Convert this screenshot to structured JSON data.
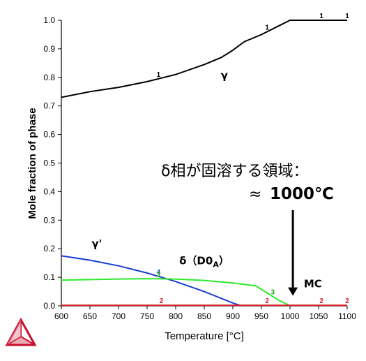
{
  "chart_data": {
    "type": "line",
    "xlabel": "Temperature [°C]",
    "ylabel": "Mole fraction of phase",
    "xlim": [
      600,
      1100
    ],
    "ylim": [
      0,
      1.0
    ],
    "x_ticks": [
      "600",
      "650",
      "700",
      "750",
      "800",
      "850",
      "900",
      "950",
      "1000",
      "1050",
      "1100"
    ],
    "y_ticks": [
      "0.0",
      "0.1",
      "0.2",
      "0.3",
      "0.4",
      "0.5",
      "0.6",
      "0.7",
      "0.8",
      "0.9",
      "1.0"
    ],
    "grid": false,
    "series": [
      {
        "name": "γ",
        "color": "#000000",
        "x": [
          600,
          650,
          700,
          750,
          800,
          850,
          880,
          900,
          920,
          950,
          980,
          1000,
          1050,
          1100
        ],
        "y": [
          0.73,
          0.75,
          0.765,
          0.785,
          0.81,
          0.845,
          0.87,
          0.895,
          0.925,
          0.95,
          0.98,
          1.0,
          1.0,
          1.0
        ],
        "markers": [
          {
            "label": "1",
            "x": 770
          },
          {
            "label": "1",
            "x": 960
          },
          {
            "label": "1",
            "x": 1055
          },
          {
            "label": "1",
            "x": 1100
          }
        ]
      },
      {
        "name": "γ'",
        "color": "#1a3fd1",
        "x": [
          600,
          650,
          700,
          750,
          800,
          850,
          900,
          915
        ],
        "y": [
          0.175,
          0.16,
          0.14,
          0.115,
          0.085,
          0.05,
          0.01,
          0.0
        ],
        "markers": [
          {
            "label": "4",
            "x": 770
          }
        ]
      },
      {
        "name": "δ（D0A）",
        "color": "#2ee82e",
        "x": [
          600,
          650,
          700,
          750,
          800,
          850,
          900,
          940,
          960,
          980,
          1000
        ],
        "y": [
          0.09,
          0.092,
          0.094,
          0.095,
          0.094,
          0.089,
          0.08,
          0.07,
          0.045,
          0.02,
          0.0
        ],
        "markers": [
          {
            "label": "3",
            "x": 770
          },
          {
            "label": "3",
            "x": 970
          }
        ]
      },
      {
        "name": "MC",
        "color": "#d81f26",
        "x": [
          600,
          1100
        ],
        "y": [
          0.002,
          0.002
        ],
        "markers": [
          {
            "label": "2",
            "x": 775
          },
          {
            "label": "2",
            "x": 960
          },
          {
            "label": "2",
            "x": 1055
          },
          {
            "label": "2",
            "x": 1100
          }
        ]
      }
    ],
    "phase_labels": [
      {
        "text": "γ",
        "x": 885,
        "y": 0.795
      },
      {
        "text": "γ'",
        "x": 662,
        "y": 0.205
      },
      {
        "text": "δ（D0",
        "sub": "A",
        "close": "）",
        "x": 850,
        "y": 0.145
      },
      {
        "text": "MC",
        "x": 1040,
        "y": 0.065
      }
    ],
    "annotation": {
      "line1": "δ相が固溶する領域：",
      "approx": "≈",
      "value": "1000℃",
      "arrow_x": 1005,
      "arrow_from_y": 0.335,
      "arrow_to_y": 0.035
    }
  },
  "logo": {
    "name": "Thermo-Calc logo",
    "color": "#c8102e"
  }
}
